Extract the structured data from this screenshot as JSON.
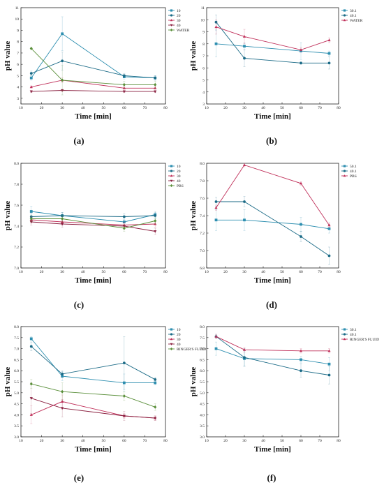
{
  "panels_labels": [
    "(a)",
    "(b)",
    "(c)",
    "(d)",
    "(e)",
    "(f)"
  ],
  "chart_data": [
    {
      "type": "line",
      "panel_label": "(a)",
      "xlabel": "Time [min]",
      "ylabel": "pH value",
      "xlim": [
        10,
        80
      ],
      "ylim": [
        2.5,
        11
      ],
      "xticks": [
        10,
        20,
        30,
        40,
        50,
        60,
        70,
        80
      ],
      "yticks": [
        3,
        4,
        5,
        6,
        7,
        8,
        9,
        10,
        11
      ],
      "legend_position": "top-right",
      "series": [
        {
          "name": "10",
          "color": "#2e8fb0",
          "marker": "square",
          "x": [
            15,
            30,
            60,
            75
          ],
          "y": [
            4.8,
            8.7,
            4.9,
            4.8
          ],
          "err": [
            0.2,
            1.5,
            0.2,
            0.2
          ]
        },
        {
          "name": "20",
          "color": "#1a6a86",
          "marker": "circle",
          "x": [
            15,
            30,
            60,
            75
          ],
          "y": [
            5.2,
            6.3,
            5.0,
            4.8
          ],
          "err": [
            0.2,
            0.8,
            0.2,
            0.2
          ]
        },
        {
          "name": "30",
          "color": "#c0305a",
          "marker": "triangle-up",
          "x": [
            15,
            30,
            60,
            75
          ],
          "y": [
            4.0,
            4.6,
            3.9,
            3.9
          ],
          "err": [
            0.1,
            0.2,
            0.1,
            0.1
          ]
        },
        {
          "name": "40",
          "color": "#8a2040",
          "marker": "triangle-down",
          "x": [
            15,
            30,
            60,
            75
          ],
          "y": [
            3.6,
            3.7,
            3.6,
            3.6
          ],
          "err": [
            0.1,
            0.1,
            0.1,
            0.1
          ]
        },
        {
          "name": "WATER",
          "color": "#5a8f3a",
          "marker": "diamond",
          "x": [
            15,
            30,
            60,
            75
          ],
          "y": [
            7.4,
            4.6,
            4.2,
            4.2
          ],
          "err": [
            0.1,
            1.3,
            0.3,
            0.3
          ]
        }
      ]
    },
    {
      "type": "line",
      "panel_label": "(b)",
      "xlabel": "Time [min]",
      "ylabel": "pH value",
      "xlim": [
        10,
        80
      ],
      "ylim": [
        3,
        11
      ],
      "xticks": [
        10,
        20,
        30,
        40,
        50,
        60,
        70,
        80
      ],
      "yticks": [
        3,
        4,
        5,
        6,
        7,
        8,
        9,
        10,
        11
      ],
      "legend_position": "top-right",
      "series": [
        {
          "name": "30.1",
          "color": "#2e8fb0",
          "marker": "square",
          "x": [
            15,
            30,
            60,
            75
          ],
          "y": [
            8.0,
            7.8,
            7.4,
            7.2
          ],
          "err": [
            1.1,
            0.3,
            0.7,
            0.2
          ]
        },
        {
          "name": "40.1",
          "color": "#1a6a86",
          "marker": "circle",
          "x": [
            15,
            30,
            60,
            75
          ],
          "y": [
            9.8,
            6.8,
            6.4,
            6.4
          ],
          "err": [
            0.6,
            0.7,
            0.1,
            0.5
          ]
        },
        {
          "name": "WATER",
          "color": "#c0305a",
          "marker": "triangle-up",
          "x": [
            15,
            30,
            60,
            75
          ],
          "y": [
            9.4,
            8.6,
            7.5,
            8.3
          ],
          "err": [
            0.6,
            0.6,
            0.2,
            0.2
          ]
        }
      ]
    },
    {
      "type": "line",
      "panel_label": "(c)",
      "xlabel": "Time [min]",
      "ylabel": "pH value",
      "xlim": [
        10,
        80
      ],
      "ylim": [
        7.0,
        8.0
      ],
      "xticks": [
        10,
        20,
        30,
        40,
        50,
        60,
        70,
        80
      ],
      "yticks": [
        7.0,
        7.2,
        7.4,
        7.6,
        7.8,
        8.0
      ],
      "legend_position": "top-right",
      "series": [
        {
          "name": "10",
          "color": "#2e8fb0",
          "marker": "square",
          "x": [
            15,
            30,
            60,
            75
          ],
          "y": [
            7.54,
            7.5,
            7.44,
            7.51
          ],
          "err": [
            0.05,
            0.03,
            0.04,
            0.03
          ]
        },
        {
          "name": "20",
          "color": "#1a6a86",
          "marker": "circle",
          "x": [
            15,
            30,
            60,
            75
          ],
          "y": [
            7.49,
            7.5,
            7.49,
            7.5
          ],
          "err": [
            0.03,
            0.03,
            0.03,
            0.03
          ]
        },
        {
          "name": "30",
          "color": "#c0305a",
          "marker": "triangle-up",
          "x": [
            15,
            30,
            60,
            75
          ],
          "y": [
            7.46,
            7.44,
            7.41,
            7.42
          ],
          "err": [
            0.03,
            0.03,
            0.03,
            0.03
          ]
        },
        {
          "name": "40",
          "color": "#8a2040",
          "marker": "triangle-down",
          "x": [
            15,
            30,
            60,
            75
          ],
          "y": [
            7.44,
            7.42,
            7.4,
            7.35
          ],
          "err": [
            0.03,
            0.03,
            0.03,
            0.03
          ]
        },
        {
          "name": "PBS",
          "color": "#5a8f3a",
          "marker": "diamond",
          "x": [
            15,
            30,
            60,
            75
          ],
          "y": [
            7.47,
            7.47,
            7.38,
            7.45
          ],
          "err": [
            0.03,
            0.03,
            0.03,
            0.03
          ]
        }
      ]
    },
    {
      "type": "line",
      "panel_label": "(d)",
      "xlabel": "Time [min]",
      "ylabel": "pH value",
      "xlim": [
        10,
        80
      ],
      "ylim": [
        6.8,
        8.0
      ],
      "xticks": [
        10,
        20,
        30,
        40,
        50,
        60,
        70,
        80
      ],
      "yticks": [
        6.8,
        7.0,
        7.2,
        7.4,
        7.6,
        7.8,
        8.0
      ],
      "legend_position": "top-right",
      "series": [
        {
          "name": "50.1",
          "color": "#2e8fb0",
          "marker": "square",
          "x": [
            15,
            30,
            60,
            75
          ],
          "y": [
            7.35,
            7.35,
            7.3,
            7.25
          ],
          "err": [
            0.12,
            0.12,
            0.08,
            0.05
          ]
        },
        {
          "name": "40.1",
          "color": "#1a6a86",
          "marker": "circle",
          "x": [
            15,
            30,
            60,
            75
          ],
          "y": [
            7.56,
            7.56,
            7.16,
            6.94
          ],
          "err": [
            0.05,
            0.06,
            0.06,
            0.1
          ]
        },
        {
          "name": "PBS",
          "color": "#c0305a",
          "marker": "triangle-up",
          "x": [
            15,
            30,
            60,
            75
          ],
          "y": [
            7.49,
            7.98,
            7.77,
            7.29
          ],
          "err": [
            0.03,
            0.02,
            0.02,
            0.03
          ]
        }
      ]
    },
    {
      "type": "line",
      "panel_label": "(e)",
      "xlabel": "Time [min]",
      "ylabel": "pH value",
      "xlim": [
        10,
        80
      ],
      "ylim": [
        3.0,
        8.0
      ],
      "xticks": [
        10,
        20,
        30,
        40,
        50,
        60,
        70,
        80
      ],
      "yticks": [
        3.0,
        3.5,
        4.0,
        4.5,
        5.0,
        5.5,
        6.0,
        6.5,
        7.0,
        7.5,
        8.0
      ],
      "legend_position": "top-right",
      "series": [
        {
          "name": "10",
          "color": "#2e8fb0",
          "marker": "square",
          "x": [
            15,
            30,
            60,
            75
          ],
          "y": [
            7.45,
            5.75,
            5.45,
            5.45
          ],
          "err": [
            0.1,
            0.2,
            0.4,
            0.1
          ]
        },
        {
          "name": "20",
          "color": "#1a6a86",
          "marker": "circle",
          "x": [
            15,
            30,
            60,
            75
          ],
          "y": [
            7.1,
            5.85,
            6.35,
            5.6
          ],
          "err": [
            0.2,
            0.15,
            1.2,
            0.1
          ]
        },
        {
          "name": "30",
          "color": "#c0305a",
          "marker": "triangle-up",
          "x": [
            15,
            30,
            60,
            75
          ],
          "y": [
            4.0,
            4.6,
            3.95,
            3.85
          ],
          "err": [
            0.4,
            0.3,
            0.1,
            0.1
          ]
        },
        {
          "name": "40",
          "color": "#8a2040",
          "marker": "triangle-down",
          "x": [
            15,
            30,
            60,
            75
          ],
          "y": [
            4.75,
            4.3,
            3.95,
            3.85
          ],
          "err": [
            0.7,
            0.4,
            0.2,
            0.1
          ]
        },
        {
          "name": "RINGER'S FLUID",
          "color": "#5a8f3a",
          "marker": "diamond",
          "x": [
            15,
            30,
            60,
            75
          ],
          "y": [
            5.4,
            5.05,
            4.85,
            4.35
          ],
          "err": [
            0.2,
            0.4,
            0.2,
            0.15
          ]
        }
      ]
    },
    {
      "type": "line",
      "panel_label": "(f)",
      "xlabel": "Time [min]",
      "ylabel": "pH value",
      "xlim": [
        10,
        80
      ],
      "ylim": [
        3.0,
        8.0
      ],
      "xticks": [
        10,
        20,
        30,
        40,
        50,
        60,
        70,
        80
      ],
      "yticks": [
        3.0,
        3.5,
        4.0,
        4.5,
        5.0,
        5.5,
        6.0,
        6.5,
        7.0,
        7.5,
        8.0
      ],
      "legend_position": "top-right",
      "series": [
        {
          "name": "30.1",
          "color": "#2e8fb0",
          "marker": "square",
          "x": [
            15,
            30,
            60,
            75
          ],
          "y": [
            7.0,
            6.55,
            6.5,
            6.3
          ],
          "err": [
            0.3,
            0.35,
            0.15,
            0.3
          ]
        },
        {
          "name": "40.1",
          "color": "#1a6a86",
          "marker": "circle",
          "x": [
            15,
            30,
            60,
            75
          ],
          "y": [
            7.55,
            6.6,
            6.0,
            5.8
          ],
          "err": [
            0.1,
            0.4,
            0.3,
            0.4
          ]
        },
        {
          "name": "RINGER'S FLUID",
          "color": "#c0305a",
          "marker": "triangle-up",
          "x": [
            15,
            30,
            60,
            75
          ],
          "y": [
            7.55,
            6.95,
            6.9,
            6.9
          ],
          "err": [
            0.1,
            0.1,
            0.1,
            0.1
          ]
        }
      ]
    }
  ]
}
